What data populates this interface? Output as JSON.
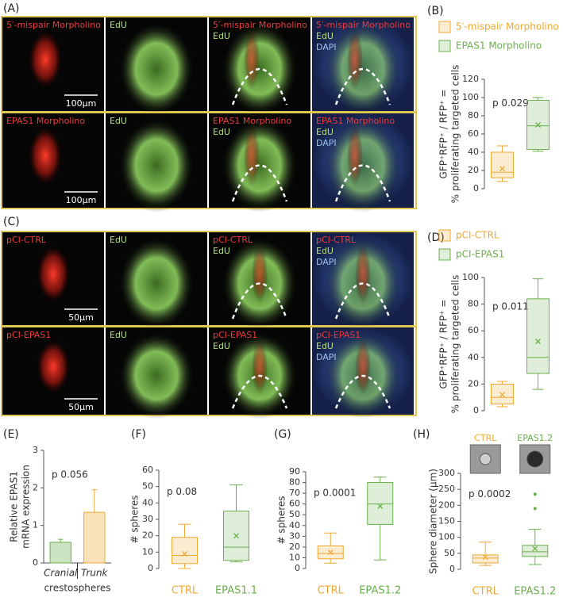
{
  "image_panels": [
    {
      "label": "(A)",
      "rows": [
        {
          "cells": [
            [
              "5′-mispair Morpholino"
            ],
            [
              "EdU"
            ],
            [
              "5′-mispair Morpholino",
              "EdU"
            ],
            [
              "5′-mispair Morpholino",
              "EdU",
              "DAPI"
            ]
          ],
          "scale": "100µm"
        },
        {
          "cells": [
            [
              "EPAS1 Morpholino"
            ],
            [
              "EdU"
            ],
            [
              "EPAS1 Morpholino",
              "EdU"
            ],
            [
              "EPAS1 Morpholino",
              "EdU",
              "DAPI"
            ]
          ],
          "scale": "100µm"
        }
      ]
    },
    {
      "label": "(C)",
      "rows": [
        {
          "cells": [
            [
              "pCI-CTRL"
            ],
            [
              "EdU"
            ],
            [
              "pCI-CTRL",
              "EdU"
            ],
            [
              "pCI-CTRL",
              "EdU",
              "DAPI"
            ]
          ],
          "scale": "50µm"
        },
        {
          "cells": [
            [
              "pCI-EPAS1"
            ],
            [
              "EdU"
            ],
            [
              "pCI-EPAS1",
              "EdU"
            ],
            [
              "pCI-EPAS1",
              "EdU",
              "DAPI"
            ]
          ],
          "scale": "50µm"
        }
      ]
    }
  ],
  "chart_data": [
    {
      "type": "box",
      "label": "(B)",
      "ylabel": [
        "GFP⁺RFP⁺ / RFP⁺ =",
        "% proliferating targeted cells"
      ],
      "annotation": "p 0.029",
      "ylim": [
        0,
        120
      ],
      "yticks": [
        0,
        20,
        40,
        60,
        80,
        100,
        120
      ],
      "legend": true,
      "series": [
        {
          "name": "5′-mispair Morpholino",
          "color": "#f0a830",
          "min": 8,
          "q1": 12,
          "median": 18,
          "q3": 40,
          "max": 47,
          "mean": 22
        },
        {
          "name": "EPAS1 Morpholino",
          "color": "#6ab04c",
          "min": 41,
          "q1": 43,
          "median": 69,
          "q3": 97,
          "max": 100,
          "mean": 70
        }
      ]
    },
    {
      "type": "box",
      "label": "(D)",
      "ylabel": [
        "GFP⁺RFP⁺ / RFP⁺ =",
        "% proliferating targeted cells"
      ],
      "annotation": "p 0.011",
      "ylim": [
        0,
        100
      ],
      "yticks": [
        0,
        20,
        40,
        60,
        80,
        100
      ],
      "legend": true,
      "series": [
        {
          "name": "pCI-CTRL",
          "color": "#f0a830",
          "min": 3,
          "q1": 5,
          "median": 10,
          "q3": 20,
          "max": 22,
          "mean": 12
        },
        {
          "name": "pCI-EPAS1",
          "color": "#6ab04c",
          "min": 16,
          "q1": 28,
          "median": 40,
          "q3": 84,
          "max": 99,
          "mean": 52
        }
      ]
    },
    {
      "type": "bar",
      "label": "(E)",
      "ylabel": [
        "Relative EPAS1",
        "mRNA expression"
      ],
      "annotation": "p 0.056",
      "ylim": [
        0,
        3
      ],
      "yticks": [
        0,
        1,
        2,
        3
      ],
      "categories": [
        "Cranial",
        "Trunk"
      ],
      "xlabel": "crestospheres",
      "values": [
        0.55,
        1.35
      ],
      "errors": [
        0.08,
        0.6
      ],
      "colors": [
        "#6ab04c",
        "#f0a830"
      ]
    },
    {
      "type": "box",
      "label": "(F)",
      "ylabel": [
        "# spheres"
      ],
      "annotation": "p 0.08",
      "ylim": [
        0,
        60
      ],
      "yticks": [
        0,
        10,
        20,
        30,
        40,
        50,
        60
      ],
      "legend": false,
      "series": [
        {
          "name": "CTRL",
          "color": "#f0a830",
          "min": 0,
          "q1": 3,
          "median": 8,
          "q3": 19,
          "max": 27,
          "mean": 9
        },
        {
          "name": "EPAS1.1",
          "color": "#6ab04c",
          "min": 4,
          "q1": 5,
          "median": 13,
          "q3": 35,
          "max": 51,
          "mean": 20
        }
      ]
    },
    {
      "type": "box",
      "label": "(G)",
      "ylabel": [
        "# spheres"
      ],
      "annotation": "p 0.0001",
      "ylim": [
        0,
        90
      ],
      "yticks": [
        0,
        10,
        20,
        30,
        40,
        50,
        60,
        70,
        80,
        90
      ],
      "legend": false,
      "series": [
        {
          "name": "CTRL",
          "color": "#f0a830",
          "min": 5,
          "q1": 9,
          "median": 14,
          "q3": 21,
          "max": 33,
          "mean": 15
        },
        {
          "name": "EPAS1.2",
          "color": "#6ab04c",
          "min": 8,
          "q1": 41,
          "median": 60,
          "q3": 80,
          "max": 85,
          "mean": 58
        }
      ]
    },
    {
      "type": "box",
      "label": "(H)",
      "ylabel": [
        "Sphere diameter (µm)"
      ],
      "annotation": "p 0.0002",
      "ylim": [
        0,
        300
      ],
      "yticks": [
        0,
        50,
        100,
        150,
        200,
        250,
        300
      ],
      "legend": false,
      "insets": [
        "CTRL",
        "EPAS1.2"
      ],
      "series": [
        {
          "name": "CTRL",
          "color": "#f0a830",
          "min": 12,
          "q1": 20,
          "median": 35,
          "q3": 45,
          "max": 85,
          "mean": 38
        },
        {
          "name": "EPAS1.2",
          "color": "#6ab04c",
          "min": 15,
          "q1": 40,
          "median": 55,
          "q3": 75,
          "max": 125,
          "mean": 65,
          "outliers": [
            190,
            235
          ]
        }
      ]
    }
  ]
}
